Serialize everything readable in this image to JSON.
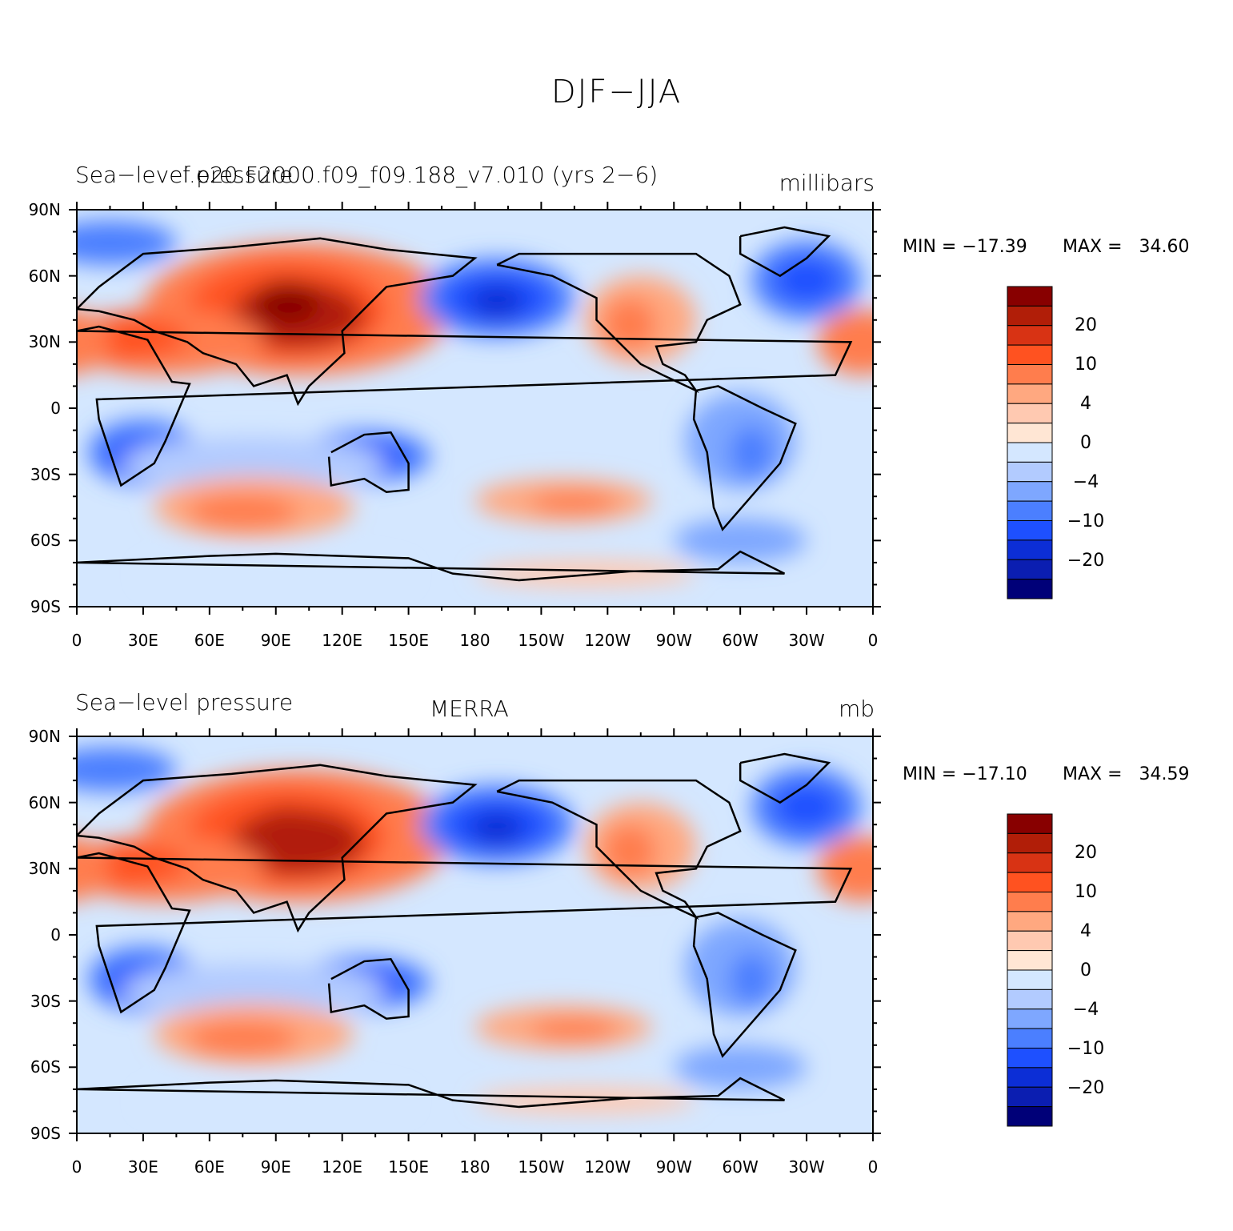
{
  "title": "DJF−JJA",
  "colors": {
    "scale": [
      "#000078",
      "#0b1eb1",
      "#0c2ed6",
      "#1e50ff",
      "#4b7fff",
      "#7ea7ff",
      "#b2cbff",
      "#d4e7ff",
      "#ffe6d4",
      "#ffc9b1",
      "#ffa880",
      "#ff7d4d",
      "#ff5220",
      "#d83314",
      "#b11e08",
      "#880000"
    ],
    "land_outline": "#000000"
  },
  "x_ticks": [
    "0",
    "30E",
    "60E",
    "90E",
    "120E",
    "150E",
    "180",
    "150W",
    "120W",
    "90W",
    "60W",
    "30W",
    "0"
  ],
  "y_ticks": [
    "90N",
    "60N",
    "30N",
    "0",
    "30S",
    "60S",
    "90S"
  ],
  "panels": [
    {
      "left_label": "Sea−level pressure",
      "center_label": "f.e20.F2000.f09_f09.188_v7.010 (yrs 2−6)",
      "right_label": "millibars",
      "min_label": "MIN = −17.39",
      "max_label": "MAX =   34.60"
    },
    {
      "left_label": "Sea−level pressure",
      "center_label": "MERRA",
      "right_label": "mb",
      "min_label": "MIN = −17.10",
      "max_label": "MAX =   34.59"
    }
  ],
  "colorbar_labels": [
    "20",
    "10",
    "4",
    "0",
    "−4",
    "−10",
    "−20"
  ]
}
